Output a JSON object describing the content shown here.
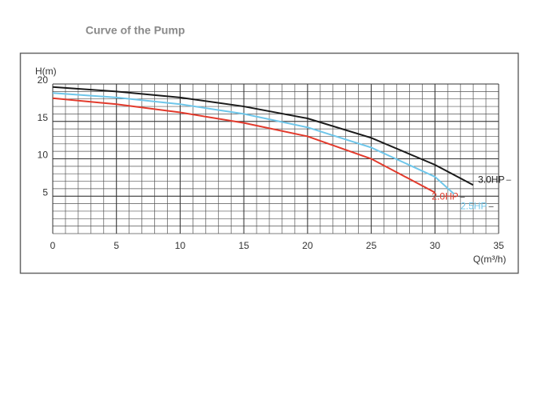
{
  "chart_data": {
    "type": "line",
    "title": "Curve of the Pump",
    "ylabel": "H(m)",
    "xlabel": "Q(m³/h)",
    "xlim": [
      0,
      35
    ],
    "xticks": [
      0,
      5,
      10,
      15,
      20,
      25,
      30,
      35
    ],
    "ylim": [
      0,
      20
    ],
    "yticks": [
      5,
      10,
      15,
      20
    ],
    "grid": true,
    "series": [
      {
        "name": "3.0HP",
        "color": "#1a1a1a",
        "x": [
          0,
          5,
          10,
          15,
          20,
          25,
          30,
          33
        ],
        "values": [
          19.6,
          19.0,
          18.2,
          17.0,
          15.4,
          12.8,
          9.2,
          6.5
        ]
      },
      {
        "name": "2.0HP",
        "color": "#e23a2c",
        "x": [
          0,
          5,
          10,
          15,
          20,
          25,
          30
        ],
        "values": [
          18.1,
          17.3,
          16.2,
          14.8,
          13.0,
          10.0,
          5.5
        ]
      },
      {
        "name": "2.5HP",
        "color": "#6ec6ea",
        "x": [
          0,
          5,
          10,
          15,
          20,
          25,
          30,
          31.5
        ],
        "values": [
          18.8,
          18.2,
          17.3,
          16.0,
          14.2,
          11.5,
          7.6,
          5.3
        ]
      }
    ]
  }
}
